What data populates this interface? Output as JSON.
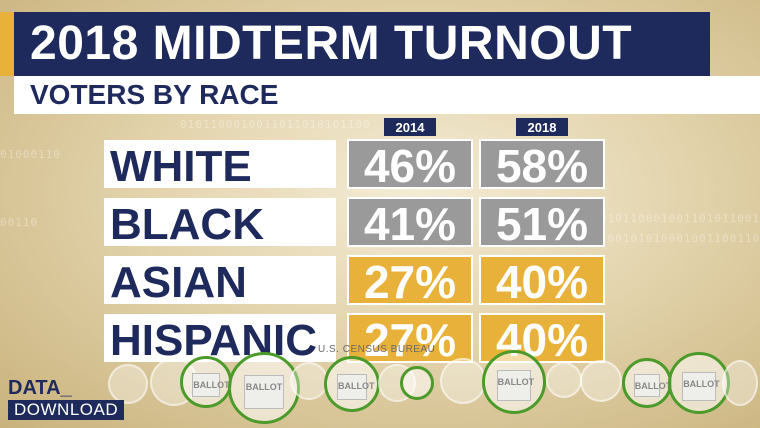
{
  "title": "2018 MIDTERM TURNOUT",
  "subtitle": "VOTERS BY RACE",
  "source": "U.S. CENSUS BUREAU",
  "logo": {
    "line1": "DATA_",
    "line2": "DOWNLOAD"
  },
  "ballot_label": "BALLOT",
  "colors": {
    "navy": "#1f2a5c",
    "gold": "#e8b23a",
    "gray": "#9a9a9a",
    "green": "#4c9a2a"
  },
  "chart_data": {
    "type": "table",
    "title": "2018 MIDTERM TURNOUT",
    "subtitle": "VOTERS BY RACE",
    "columns": [
      "2014",
      "2018"
    ],
    "categories": [
      "WHITE",
      "BLACK",
      "ASIAN",
      "HISPANIC"
    ],
    "series": [
      {
        "name": "2014",
        "values": [
          46,
          41,
          27,
          27
        ]
      },
      {
        "name": "2018",
        "values": [
          58,
          51,
          40,
          40
        ]
      }
    ],
    "unit": "%",
    "cell_color": [
      "gray",
      "gray",
      "gold",
      "gold"
    ]
  }
}
